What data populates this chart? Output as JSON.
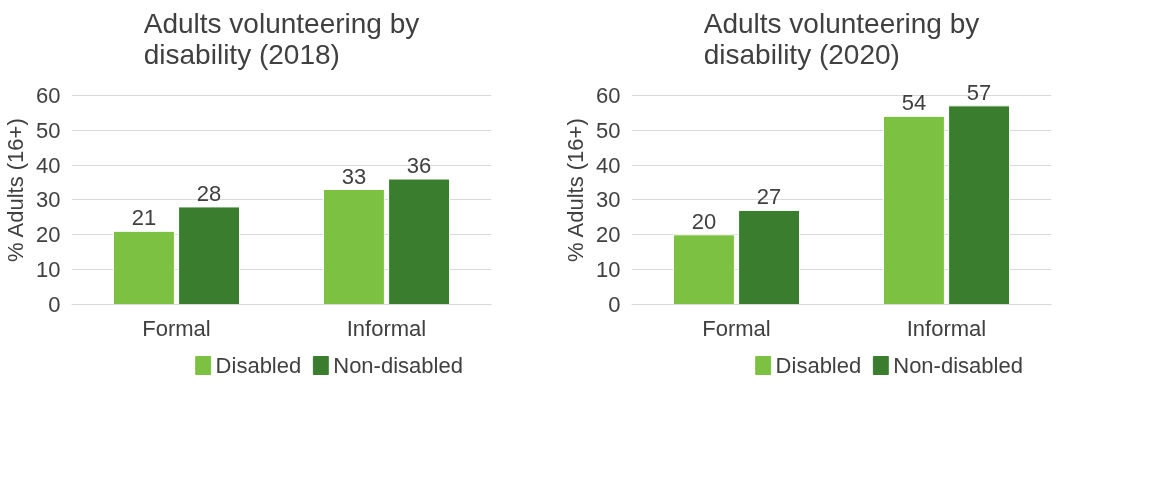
{
  "chart_data": [
    {
      "type": "bar",
      "title": "Adults volunteering by disability (2018)",
      "ylabel": "% Adults (16+)",
      "categories": [
        "Formal",
        "Informal"
      ],
      "series": [
        {
          "name": "Disabled",
          "color": "#7cc142",
          "values": [
            21,
            33
          ]
        },
        {
          "name": "Non-disabled",
          "color": "#3a7d2e",
          "values": [
            28,
            36
          ]
        }
      ],
      "ylim": [
        0,
        60
      ],
      "yticks": [
        0,
        10,
        20,
        30,
        40,
        50,
        60
      ],
      "grid": "y",
      "legend": "bottom",
      "data_labels": true
    },
    {
      "type": "bar",
      "title": "Adults volunteering by disability (2020)",
      "ylabel": "% Adults (16+)",
      "categories": [
        "Formal",
        "Informal"
      ],
      "series": [
        {
          "name": "Disabled",
          "color": "#7cc142",
          "values": [
            20,
            54
          ]
        },
        {
          "name": "Non-disabled",
          "color": "#3a7d2e",
          "values": [
            27,
            57
          ]
        }
      ],
      "ylim": [
        0,
        60
      ],
      "yticks": [
        0,
        10,
        20,
        30,
        40,
        50,
        60
      ],
      "grid": "y",
      "legend": "bottom",
      "data_labels": true
    }
  ]
}
